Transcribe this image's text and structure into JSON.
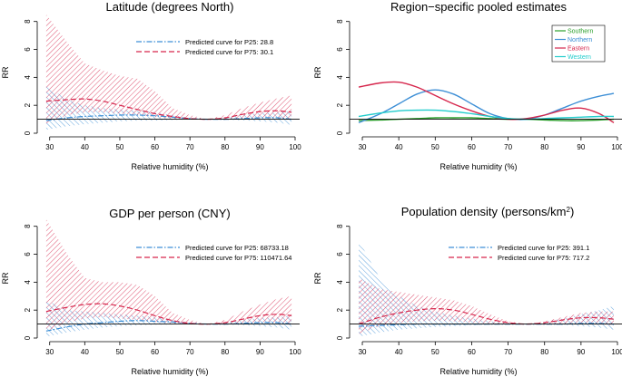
{
  "chart_data": [
    {
      "type": "line",
      "title": "Latitude (degrees North)",
      "xlabel": "Relative humidity (%)",
      "ylabel": "RR",
      "xlim": [
        28,
        100
      ],
      "ylim": [
        0,
        8.5
      ],
      "xticks": [
        "30",
        "40",
        "50",
        "60",
        "70",
        "80",
        "90",
        "100"
      ],
      "yticks": [
        "0",
        "2",
        "4",
        "6",
        "8"
      ],
      "reference_line": 1,
      "legend": [
        "Predicted curve for P25: 28.8",
        "Predicted curve for P75: 30.1"
      ],
      "x": [
        29,
        35,
        40,
        45,
        50,
        55,
        60,
        65,
        70,
        75,
        80,
        85,
        90,
        95,
        99
      ],
      "series": [
        {
          "name": "P25",
          "color": "#3d8fd6",
          "style": "dotdash",
          "values": [
            0.9,
            1.1,
            1.2,
            1.25,
            1.3,
            1.3,
            1.25,
            1.15,
            1.05,
            1.0,
            1.0,
            1.05,
            1.1,
            1.1,
            1.0
          ],
          "lower": [
            0.25,
            0.5,
            0.65,
            0.75,
            0.85,
            0.9,
            0.9,
            0.95,
            0.98,
            1.0,
            0.97,
            0.92,
            0.85,
            0.75,
            0.6
          ],
          "upper": [
            3.4,
            2.4,
            2.0,
            1.8,
            1.7,
            1.6,
            1.5,
            1.3,
            1.1,
            1.0,
            1.1,
            1.3,
            1.45,
            1.5,
            1.6
          ]
        },
        {
          "name": "P75",
          "color": "#d6264c",
          "style": "dashed",
          "values": [
            2.3,
            2.4,
            2.45,
            2.3,
            2.0,
            1.7,
            1.4,
            1.2,
            1.05,
            1.0,
            1.1,
            1.35,
            1.55,
            1.6,
            1.5
          ],
          "lower": [
            0.7,
            1.3,
            1.5,
            1.5,
            1.4,
            1.3,
            1.15,
            1.05,
            1.0,
            1.0,
            0.95,
            1.05,
            1.15,
            1.1,
            1.0
          ],
          "upper": [
            8.5,
            6.5,
            5.0,
            4.5,
            4.1,
            3.9,
            3.0,
            1.8,
            1.3,
            1.0,
            1.3,
            1.8,
            2.2,
            2.5,
            2.7
          ]
        }
      ]
    },
    {
      "type": "line",
      "title": "Region−specific pooled estimates",
      "xlabel": "Relative humidity (%)",
      "ylabel": "RR",
      "xlim": [
        28,
        100
      ],
      "ylim": [
        0,
        8.5
      ],
      "xticks": [
        "30",
        "40",
        "50",
        "60",
        "70",
        "80",
        "90",
        "100"
      ],
      "yticks": [
        "0",
        "2",
        "4",
        "6",
        "8"
      ],
      "reference_line": 1,
      "legend": [
        "Southern",
        "Northern",
        "Eastern",
        "Western"
      ],
      "x": [
        29,
        35,
        40,
        45,
        50,
        55,
        60,
        65,
        70,
        75,
        80,
        85,
        90,
        95,
        99
      ],
      "series": [
        {
          "name": "Southern",
          "color": "#2ca02c",
          "values": [
            0.9,
            0.95,
            1.0,
            1.05,
            1.1,
            1.1,
            1.1,
            1.05,
            1.0,
            1.0,
            0.95,
            0.9,
            0.9,
            0.95,
            1.0
          ]
        },
        {
          "name": "Northern",
          "color": "#3d8fd6",
          "values": [
            0.75,
            1.4,
            2.1,
            2.8,
            3.1,
            2.8,
            2.1,
            1.4,
            1.05,
            1.0,
            1.3,
            1.8,
            2.3,
            2.65,
            2.85
          ]
        },
        {
          "name": "Eastern",
          "color": "#d6264c",
          "values": [
            3.3,
            3.6,
            3.65,
            3.3,
            2.7,
            2.1,
            1.6,
            1.2,
            1.0,
            1.05,
            1.3,
            1.65,
            1.8,
            1.4,
            0.75
          ]
        },
        {
          "name": "Western",
          "color": "#22cccc",
          "values": [
            1.2,
            1.45,
            1.6,
            1.65,
            1.65,
            1.55,
            1.4,
            1.2,
            1.05,
            1.0,
            1.05,
            1.1,
            1.15,
            1.2,
            1.2
          ]
        }
      ]
    },
    {
      "type": "line",
      "title": "GDP per person (CNY)",
      "xlabel": "Relative humidity (%)",
      "ylabel": "RR",
      "xlim": [
        28,
        100
      ],
      "ylim": [
        0,
        8.5
      ],
      "xticks": [
        "30",
        "40",
        "50",
        "60",
        "70",
        "80",
        "90",
        "100"
      ],
      "yticks": [
        "0",
        "2",
        "4",
        "6",
        "8"
      ],
      "reference_line": 1,
      "legend": [
        "Predicted curve for P25: 68733.18",
        "Predicted curve for P75: 110471.64"
      ],
      "x": [
        29,
        35,
        40,
        45,
        50,
        55,
        60,
        65,
        70,
        75,
        80,
        85,
        90,
        95,
        99
      ],
      "series": [
        {
          "name": "P25",
          "color": "#3d8fd6",
          "style": "dotdash",
          "values": [
            0.5,
            0.8,
            1.0,
            1.1,
            1.2,
            1.25,
            1.2,
            1.15,
            1.05,
            1.0,
            1.0,
            1.05,
            1.1,
            1.1,
            1.0
          ],
          "lower": [
            0.1,
            0.4,
            0.6,
            0.75,
            0.85,
            0.9,
            0.95,
            0.97,
            0.98,
            1.0,
            0.97,
            0.92,
            0.85,
            0.75,
            0.6
          ],
          "upper": [
            2.7,
            2.0,
            1.9,
            1.8,
            1.7,
            1.6,
            1.5,
            1.3,
            1.1,
            1.0,
            1.1,
            1.3,
            1.45,
            1.5,
            1.6
          ]
        },
        {
          "name": "P75",
          "color": "#d6264c",
          "style": "dashed",
          "values": [
            1.9,
            2.2,
            2.4,
            2.45,
            2.3,
            2.0,
            1.6,
            1.25,
            1.05,
            1.0,
            1.1,
            1.35,
            1.6,
            1.7,
            1.6
          ],
          "lower": [
            0.5,
            1.1,
            1.4,
            1.5,
            1.4,
            1.3,
            1.15,
            1.05,
            1.0,
            1.0,
            0.95,
            1.05,
            1.15,
            1.1,
            1.0
          ],
          "upper": [
            8.5,
            6.0,
            4.3,
            4.0,
            4.0,
            3.8,
            3.0,
            1.8,
            1.3,
            1.0,
            1.3,
            1.9,
            2.4,
            2.8,
            3.0
          ]
        }
      ]
    },
    {
      "type": "line",
      "title": "Population density",
      "title_units": "(persons/km",
      "title_units_sup": "2",
      "title_units_close": ")",
      "xlabel": "Relative humidity (%)",
      "ylabel": "RR",
      "xlim": [
        28,
        100
      ],
      "ylim": [
        0,
        8.5
      ],
      "xticks": [
        "30",
        "40",
        "50",
        "60",
        "70",
        "80",
        "90",
        "100"
      ],
      "yticks": [
        "0",
        "2",
        "4",
        "6",
        "8"
      ],
      "reference_line": 1,
      "legend": [
        "Predicted curve for P25: 391.1",
        "Predicted curve for P75: 717.2"
      ],
      "x": [
        29,
        35,
        40,
        45,
        50,
        55,
        60,
        65,
        70,
        75,
        80,
        85,
        90,
        95,
        99
      ],
      "series": [
        {
          "name": "P25",
          "color": "#3d8fd6",
          "style": "dotdash",
          "values": [
            0.85,
            0.9,
            0.95,
            1.0,
            1.0,
            1.0,
            1.0,
            1.0,
            1.0,
            1.0,
            1.0,
            1.0,
            1.05,
            1.05,
            1.0
          ],
          "lower": [
            0.1,
            0.4,
            0.6,
            0.7,
            0.8,
            0.85,
            0.9,
            0.95,
            0.98,
            1.0,
            0.97,
            0.92,
            0.85,
            0.75,
            0.6
          ],
          "upper": [
            7.0,
            4.2,
            3.0,
            2.3,
            1.9,
            1.6,
            1.4,
            1.2,
            1.05,
            1.0,
            1.15,
            1.4,
            1.7,
            2.0,
            2.3
          ]
        },
        {
          "name": "P75",
          "color": "#d6264c",
          "style": "dashed",
          "values": [
            1.0,
            1.5,
            1.8,
            2.0,
            2.1,
            2.0,
            1.7,
            1.35,
            1.1,
            1.0,
            1.1,
            1.3,
            1.45,
            1.45,
            1.35
          ],
          "lower": [
            0.3,
            0.9,
            1.1,
            1.2,
            1.25,
            1.2,
            1.1,
            1.05,
            1.0,
            1.0,
            0.95,
            1.0,
            1.05,
            1.0,
            0.9
          ],
          "upper": [
            4.3,
            3.5,
            3.3,
            3.1,
            2.9,
            2.7,
            2.3,
            1.7,
            1.2,
            1.0,
            1.2,
            1.5,
            1.8,
            1.9,
            1.9
          ]
        }
      ]
    }
  ]
}
